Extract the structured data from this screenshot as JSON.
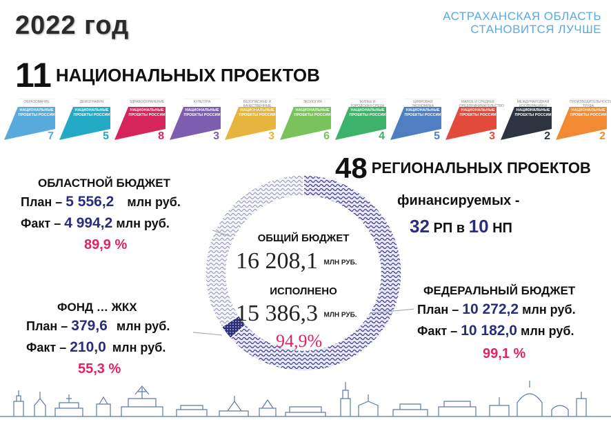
{
  "header": {
    "year": "2022 год",
    "brand_line1": "АСТРАХАНСКАЯ ОБЛАСТЬ",
    "brand_line2": "СТАНОВИТСЯ ЛУЧШЕ"
  },
  "national": {
    "count": "11",
    "label": "НАЦИОНАЛЬНЫХ ПРОЕКТОВ",
    "logo_text": "НАЦИОНАЛЬНЫЕ ПРОЕКТЫ РОССИИ",
    "projects": [
      {
        "category": "Образование",
        "count": "7",
        "color": "#58a9dc"
      },
      {
        "category": "Демография",
        "count": "5",
        "color": "#23a9c4"
      },
      {
        "category": "Здравоохранение",
        "count": "8",
        "color": "#d6255a"
      },
      {
        "category": "Культура",
        "count": "3",
        "color": "#7c5db0"
      },
      {
        "category": "Безопасные и качественные дороги",
        "count": "3",
        "color": "#e6b53e"
      },
      {
        "category": "Экология",
        "count": "6",
        "color": "#7ac35c"
      },
      {
        "category": "Жилье и городская среда",
        "count": "4",
        "color": "#3cb26a"
      },
      {
        "category": "Цифровая экономика",
        "count": "5",
        "color": "#4f7fc2"
      },
      {
        "category": "Малое и среднее предпринимательство",
        "count": "3",
        "color": "#e24b3c"
      },
      {
        "category": "Международная кооперация и экспорт",
        "count": "2",
        "color": "#2b3440"
      },
      {
        "category": "Производительность труда",
        "count": "2",
        "color": "#f08a33"
      }
    ]
  },
  "regional": {
    "count": "48",
    "label": "РЕГИОНАЛЬНЫХ ПРОЕКТОВ",
    "financed": "финансируемых -",
    "rp_count": "32",
    "rp_label": "РП в",
    "np_count": "10",
    "np_label": "НП"
  },
  "oblast_budget": {
    "title": "ОБЛАСТНОЙ БЮДЖЕТ",
    "plan_label": "План –",
    "plan_value": "5 556,2",
    "fact_label": "Факт –",
    "fact_value": "4 994,2",
    "unit": "млн руб.",
    "percent": "89,9 %"
  },
  "fund_budget": {
    "title": "ФОНД … ЖКХ",
    "plan_label": "План –",
    "plan_value": "379,6",
    "fact_label": "Факт –",
    "fact_value": "210,0",
    "unit": "млн руб.",
    "percent": "55,3 %"
  },
  "federal_budget": {
    "title": "ФЕДЕРАЛЬНЫЙ БЮДЖЕТ",
    "plan_label": "План –",
    "plan_value": "10 272,2",
    "fact_label": "Факт –",
    "fact_value": "10 182,0",
    "unit": "млн руб.",
    "percent": "99,1 %"
  },
  "total": {
    "title": "ОБЩИЙ БЮДЖЕТ",
    "value": "16 208,1",
    "unit": "МЛН РУБ.",
    "done_title": "ИСПОЛНЕНО",
    "done_value": "15 386,3",
    "done_unit": "МЛН РУБ.",
    "percent": "94,9%"
  },
  "chart_data": {
    "type": "pie",
    "donut": true,
    "categories": [
      "Федеральный бюджет",
      "Фонд … ЖКХ",
      "Областной бюджет"
    ],
    "values": [
      10272.2,
      379.6,
      5556.2
    ],
    "colors": [
      "#3c3b8c",
      "#2a2d7a",
      "#6f7aa8"
    ]
  }
}
